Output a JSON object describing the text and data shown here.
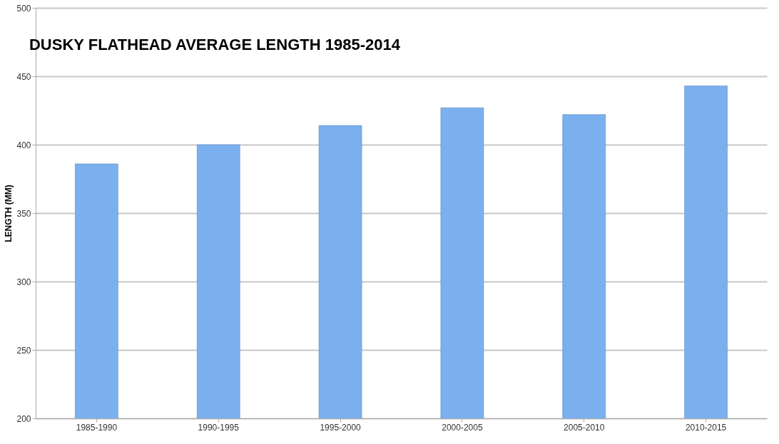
{
  "chart_data": {
    "type": "bar",
    "title": "DUSKY FLATHEAD AVERAGE LENGTH 1985-2014",
    "ylabel": "LENGTH (MM)",
    "categories": [
      "1985-1990",
      "1990-1995",
      "1995-2000",
      "2000-2005",
      "2005-2010",
      "2010-2015"
    ],
    "values": [
      386,
      400,
      414,
      427,
      422,
      443
    ],
    "color": "#7ab0ee",
    "ylim": [
      200,
      500
    ],
    "yticks": [
      200,
      250,
      300,
      350,
      400,
      450,
      500
    ],
    "grid": "y"
  }
}
